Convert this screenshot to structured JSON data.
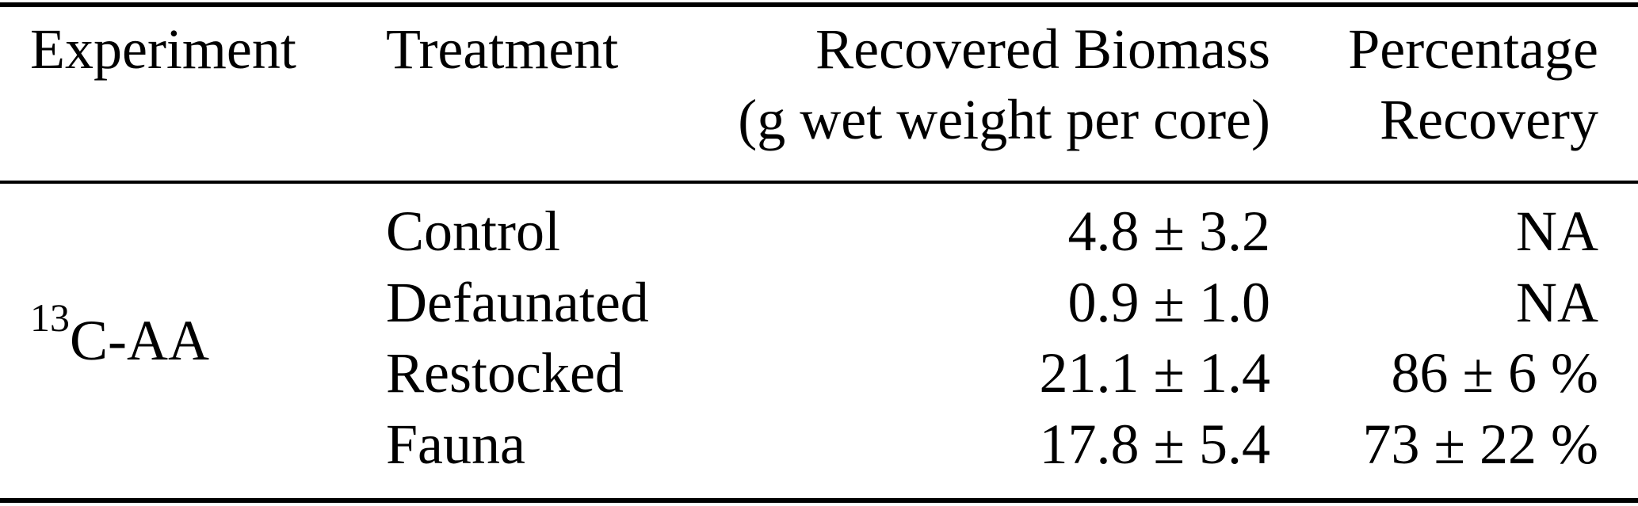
{
  "table": {
    "columns": [
      {
        "label": "Experiment",
        "sublabel": "",
        "align": "left"
      },
      {
        "label": "Treatment",
        "sublabel": "",
        "align": "left"
      },
      {
        "label": "Recovered Biomass",
        "sublabel": "(g wet weight per core)",
        "align": "right"
      },
      {
        "label": "Percentage",
        "sublabel": "Recovery",
        "align": "right"
      }
    ],
    "experiment_group": {
      "isotope_superscript": "13",
      "name": "C-AA"
    },
    "rows": [
      {
        "treatment": "Control",
        "recovered_biomass": "4.8 ± 3.2",
        "percentage_recovery": "NA"
      },
      {
        "treatment": "Defaunated",
        "recovered_biomass": "0.9 ± 1.0",
        "percentage_recovery": "NA"
      },
      {
        "treatment": "Restocked",
        "recovered_biomass": "21.1 ± 1.4",
        "percentage_recovery": "86 ± 6 %"
      },
      {
        "treatment": "Fauna",
        "recovered_biomass": "17.8 ± 5.4",
        "percentage_recovery": "73 ± 22 %"
      }
    ]
  },
  "colors": {
    "text": "#000000",
    "rule": "#000000",
    "background": "#ffffff"
  }
}
